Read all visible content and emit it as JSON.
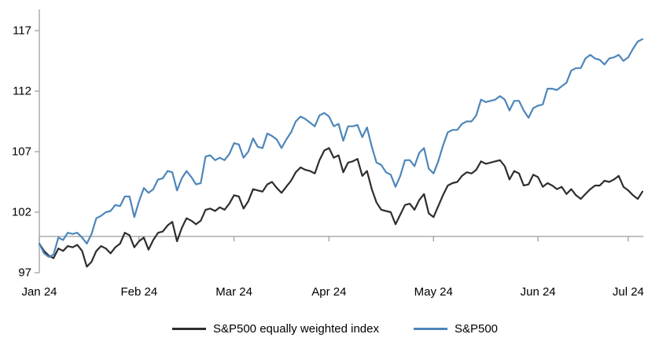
{
  "legend": {
    "items": [
      {
        "label": "S&P500 equally weighted index",
        "color": "#2e2e2e"
      },
      {
        "label": "S&P500",
        "color": "#4d86ba"
      }
    ]
  },
  "chart_data": {
    "type": "line",
    "x": [
      "Jan 2",
      "Jan 3",
      "Jan 4",
      "Jan 5",
      "Jan 8",
      "Jan 9",
      "Jan 10",
      "Jan 11",
      "Jan 12",
      "Jan 16",
      "Jan 17",
      "Jan 18",
      "Jan 19",
      "Jan 22",
      "Jan 23",
      "Jan 24",
      "Jan 25",
      "Jan 26",
      "Jan 29",
      "Jan 30",
      "Jan 31",
      "Feb 1",
      "Feb 2",
      "Feb 5",
      "Feb 6",
      "Feb 7",
      "Feb 8",
      "Feb 9",
      "Feb 12",
      "Feb 13",
      "Feb 14",
      "Feb 15",
      "Feb 16",
      "Feb 20",
      "Feb 21",
      "Feb 22",
      "Feb 23",
      "Feb 26",
      "Feb 27",
      "Feb 28",
      "Feb 29",
      "Mar 1",
      "Mar 4",
      "Mar 5",
      "Mar 6",
      "Mar 7",
      "Mar 8",
      "Mar 11",
      "Mar 12",
      "Mar 13",
      "Mar 14",
      "Mar 15",
      "Mar 18",
      "Mar 19",
      "Mar 20",
      "Mar 21",
      "Mar 22",
      "Mar 25",
      "Mar 26",
      "Mar 27",
      "Mar 28",
      "Apr 1",
      "Apr 2",
      "Apr 3",
      "Apr 4",
      "Apr 5",
      "Apr 8",
      "Apr 9",
      "Apr 10",
      "Apr 11",
      "Apr 12",
      "Apr 15",
      "Apr 16",
      "Apr 17",
      "Apr 18",
      "Apr 19",
      "Apr 22",
      "Apr 23",
      "Apr 24",
      "Apr 25",
      "Apr 26",
      "Apr 29",
      "Apr 30",
      "May 1",
      "May 2",
      "May 3",
      "May 6",
      "May 7",
      "May 8",
      "May 9",
      "May 10",
      "May 13",
      "May 14",
      "May 15",
      "May 16",
      "May 17",
      "May 20",
      "May 21",
      "May 22",
      "May 23",
      "May 24",
      "May 28",
      "May 29",
      "May 30",
      "May 31",
      "Jun 3",
      "Jun 4",
      "Jun 5",
      "Jun 6",
      "Jun 7",
      "Jun 10",
      "Jun 11",
      "Jun 12",
      "Jun 13",
      "Jun 14",
      "Jun 17",
      "Jun 18",
      "Jun 20",
      "Jun 21",
      "Jun 24",
      "Jun 25",
      "Jun 26",
      "Jun 27",
      "Jun 28",
      "Jul 1",
      "Jul 2",
      "Jul 3",
      "Jul 5"
    ],
    "series": [
      {
        "name": "S&P500 equally weighted index",
        "color": "#2e2e2e",
        "values": [
          99.4,
          98.8,
          98.4,
          98.2,
          99.0,
          98.8,
          99.2,
          99.1,
          99.3,
          98.8,
          97.5,
          97.9,
          98.8,
          99.2,
          99.0,
          98.6,
          99.1,
          99.4,
          100.3,
          100.1,
          99.1,
          99.6,
          99.9,
          98.9,
          99.7,
          100.3,
          100.4,
          100.9,
          101.2,
          99.6,
          100.7,
          101.5,
          101.3,
          101.0,
          101.3,
          102.2,
          102.3,
          102.1,
          102.4,
          102.2,
          102.7,
          103.4,
          103.3,
          102.3,
          102.9,
          103.9,
          103.8,
          103.7,
          104.3,
          104.5,
          104.0,
          103.6,
          104.1,
          104.6,
          105.3,
          105.7,
          105.5,
          105.4,
          105.2,
          106.3,
          107.1,
          107.3,
          106.5,
          106.7,
          105.3,
          106.1,
          106.2,
          106.4,
          105.0,
          105.4,
          103.9,
          102.8,
          102.2,
          102.1,
          102.0,
          101.0,
          101.8,
          102.6,
          102.7,
          102.2,
          103.0,
          103.5,
          101.9,
          101.6,
          102.5,
          103.4,
          104.2,
          104.4,
          104.5,
          105.0,
          105.3,
          105.2,
          105.5,
          106.2,
          106.0,
          106.1,
          106.2,
          106.3,
          105.8,
          104.7,
          105.4,
          105.2,
          104.2,
          104.3,
          105.1,
          104.9,
          104.1,
          104.4,
          104.2,
          103.9,
          104.1,
          103.5,
          103.9,
          103.4,
          103.1,
          103.5,
          103.9,
          104.2,
          104.2,
          104.6,
          104.5,
          104.7,
          105.0,
          104.1,
          103.8,
          103.4,
          103.1,
          103.7
        ]
      },
      {
        "name": "S&P500",
        "color": "#4d86ba",
        "values": [
          99.4,
          98.6,
          98.3,
          98.5,
          99.9,
          99.7,
          100.3,
          100.2,
          100.3,
          99.9,
          99.4,
          100.2,
          101.5,
          101.7,
          102.0,
          102.1,
          102.6,
          102.5,
          103.3,
          103.3,
          101.6,
          102.9,
          104.0,
          103.6,
          103.9,
          104.7,
          104.8,
          105.4,
          105.3,
          103.8,
          104.8,
          105.4,
          104.9,
          104.3,
          104.4,
          106.6,
          106.7,
          106.3,
          106.5,
          106.3,
          106.8,
          107.7,
          107.6,
          106.5,
          107.0,
          108.1,
          107.4,
          107.3,
          108.5,
          108.3,
          108.0,
          107.3,
          108.0,
          108.6,
          109.5,
          109.9,
          109.7,
          109.4,
          109.1,
          110.0,
          110.2,
          109.9,
          109.1,
          109.3,
          107.9,
          109.1,
          109.1,
          109.2,
          108.2,
          109.0,
          107.4,
          106.1,
          105.9,
          105.3,
          105.1,
          104.1,
          105.0,
          106.3,
          106.3,
          105.8,
          106.9,
          107.3,
          105.6,
          105.2,
          106.2,
          107.5,
          108.6,
          108.8,
          108.8,
          109.3,
          109.5,
          109.5,
          110.0,
          111.3,
          111.1,
          111.2,
          111.3,
          111.6,
          111.3,
          110.4,
          111.2,
          111.2,
          110.4,
          109.8,
          110.6,
          110.8,
          110.9,
          112.2,
          112.2,
          112.1,
          112.4,
          112.7,
          113.7,
          113.9,
          113.9,
          114.7,
          115.0,
          114.7,
          114.6,
          114.2,
          114.7,
          114.8,
          115.0,
          114.5,
          114.8,
          115.5,
          116.1,
          116.3
        ]
      }
    ],
    "x_ticks": [
      {
        "label": "Jan 24",
        "index": 0
      },
      {
        "label": "Feb 24",
        "index": 21
      },
      {
        "label": "Mar 24",
        "index": 41
      },
      {
        "label": "Apr 24",
        "index": 61
      },
      {
        "label": "May 24",
        "index": 83
      },
      {
        "label": "Jun 24",
        "index": 105
      },
      {
        "label": "Jul 24",
        "index": 124
      }
    ],
    "y_ticks": [
      97,
      102,
      107,
      112,
      117
    ],
    "ylim": [
      97,
      117
    ],
    "baseline": 100,
    "axis_color": "#a6a6a6",
    "legend_position": "bottom",
    "grid": false
  }
}
